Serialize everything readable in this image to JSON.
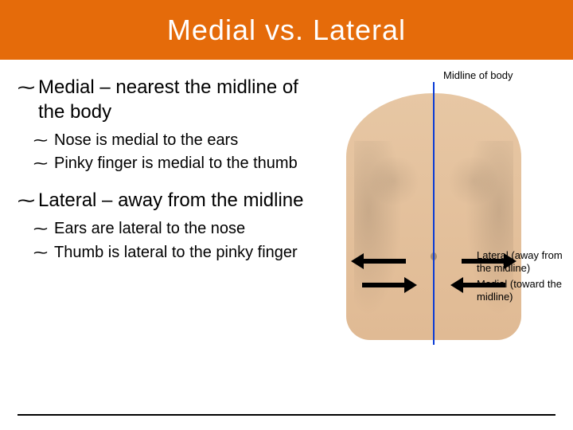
{
  "colors": {
    "title_bg": "#e56b0a",
    "title_text": "#ffffff",
    "body_text": "#000000",
    "midline_blue": "#0a3bd6",
    "skin_top": "#e7c7a4",
    "skin_bottom": "#e0ba94",
    "background": "#ffffff"
  },
  "title": "Medial vs. Lateral",
  "bullet_glyph": "⁓",
  "bullets": [
    {
      "text": "Medial – nearest the midline of the body",
      "sub": [
        "Nose is medial to the ears",
        "Pinky finger is medial to the thumb"
      ]
    },
    {
      "text": "Lateral – away from the midline",
      "sub": [
        "Ears are lateral to the nose",
        "Thumb is lateral to the pinky finger"
      ]
    }
  ],
  "figure": {
    "label_midline": "Midline of body",
    "label_lateral": "Lateral (away from the midline)",
    "label_medial": "Medial (toward the midline)"
  },
  "typography": {
    "title_fontsize": 36,
    "l1_fontsize": 24,
    "l2_fontsize": 20,
    "fig_label_fontsize": 13
  }
}
